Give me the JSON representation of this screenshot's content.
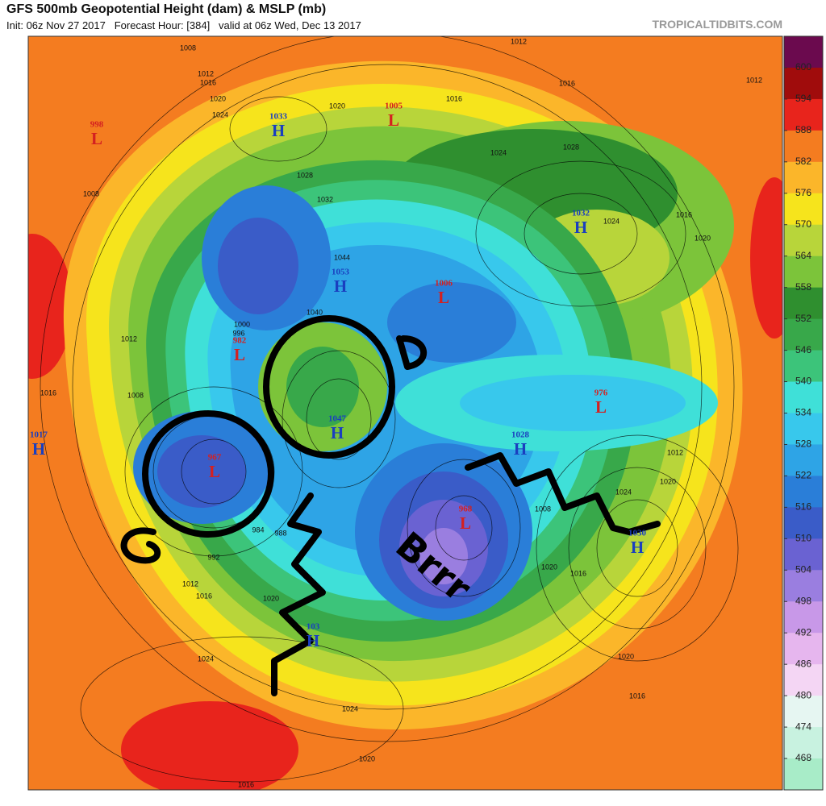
{
  "header": {
    "title": "GFS 500mb Geopotential Height (dam) & MSLP (mb)",
    "subtitle": "Init: 06z Nov 27 2017   Forecast Hour: [384]   valid at 06z Wed, Dec 13 2017",
    "source": "TROPICALTIDBITS.COM"
  },
  "colorbar": {
    "levels": [
      600,
      594,
      588,
      582,
      576,
      570,
      564,
      558,
      552,
      546,
      540,
      534,
      528,
      522,
      516,
      510,
      504,
      498,
      492,
      486,
      480,
      474,
      468
    ],
    "colors": [
      "#6b0a4e",
      "#a00c0c",
      "#e8241c",
      "#f47c20",
      "#fbb62a",
      "#f6e41c",
      "#b8d53a",
      "#7cc43a",
      "#2f8f2f",
      "#38a84a",
      "#3cc47a",
      "#3fe0d8",
      "#38c8ec",
      "#2ea4e6",
      "#2a7ed8",
      "#3a5cc8",
      "#6a62d2",
      "#9a7ee0",
      "#c898e8",
      "#e6b6ee",
      "#f4d6f4",
      "#e6f6f2",
      "#c8f2e0",
      "#a8ecc8"
    ]
  },
  "pressure_centers": [
    {
      "letter": "L",
      "value": 998
    },
    {
      "letter": "H",
      "value": 1033
    },
    {
      "letter": "L",
      "value": 1005
    },
    {
      "letter": "H",
      "value": 1032
    },
    {
      "letter": "H",
      "value": 1053
    },
    {
      "letter": "L",
      "value": 1006
    },
    {
      "letter": "L",
      "value": 982
    },
    {
      "letter": "L",
      "value": 976
    },
    {
      "letter": "H",
      "value": 1047
    },
    {
      "letter": "H",
      "value": 1017
    },
    {
      "letter": "H",
      "value": 1028
    },
    {
      "letter": "L",
      "value": 967
    },
    {
      "letter": "L",
      "value": 968
    },
    {
      "letter": "H",
      "value": 1030
    },
    {
      "letter": "H",
      "value": 103
    }
  ],
  "isobar_labels": [
    1008,
    1012,
    1016,
    1020,
    1024,
    1012,
    1016,
    1012,
    1016,
    1020,
    1028,
    1032,
    1024,
    1028,
    1024,
    1020,
    1016,
    1008,
    1012,
    1008,
    1016,
    992,
    1012,
    1016,
    1020,
    1024,
    1020,
    1016,
    1024,
    1020,
    1016,
    1012,
    1020,
    1024,
    1016,
    1020,
    1008,
    1000,
    996,
    984,
    988,
    1040,
    1044
  ],
  "annotations": [
    "Brrr"
  ]
}
